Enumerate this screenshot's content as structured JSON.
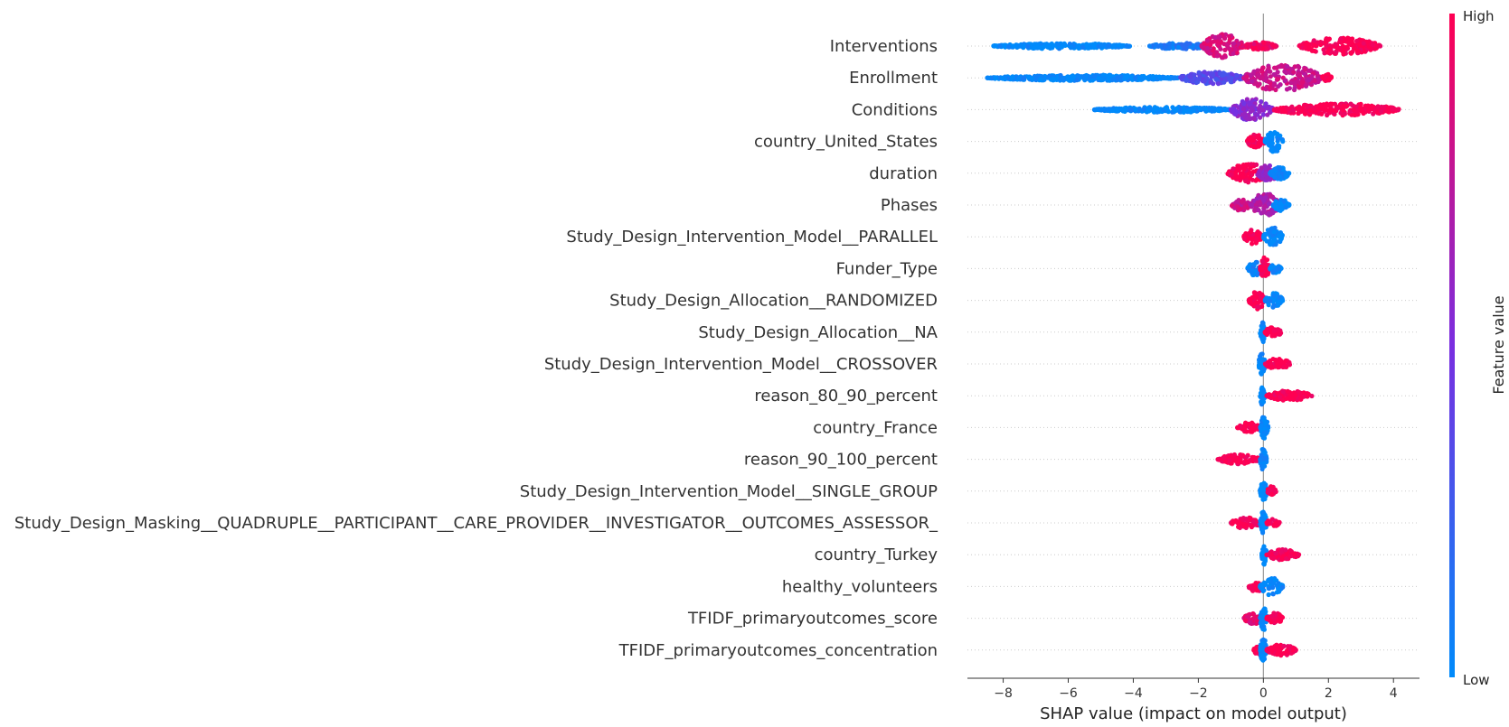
{
  "chart_data": {
    "type": "scatter",
    "subtype": "shap-beeswarm",
    "xlabel": "SHAP value (impact on model output)",
    "xlim": [
      -9.1,
      4.8
    ],
    "xticks": [
      -8,
      -6,
      -4,
      -2,
      0,
      2,
      4
    ],
    "xtick_labels": [
      "−8",
      "−6",
      "−4",
      "−2",
      "0",
      "2",
      "4"
    ],
    "colorbar": {
      "title": "Feature value",
      "high_label": "High",
      "low_label": "Low",
      "high_color": "#ff0052",
      "low_color": "#008bfb"
    },
    "features": [
      {
        "name": "Interventions",
        "segments": [
          {
            "x0": -8.3,
            "x1": -4.1,
            "v": 0.0,
            "w": 0.07
          },
          {
            "x0": -3.5,
            "x1": -1.6,
            "v": 0.1,
            "w": 0.1
          },
          {
            "x0": -1.9,
            "x1": -0.6,
            "v": 0.85,
            "w": 0.85
          },
          {
            "x0": -0.6,
            "x1": 0.4,
            "v": 0.95,
            "w": 0.15
          },
          {
            "x0": 1.1,
            "x1": 3.6,
            "v": 1.0,
            "w": 0.55
          }
        ]
      },
      {
        "name": "Enrollment",
        "segments": [
          {
            "x0": -8.5,
            "x1": -2.6,
            "v": 0.0,
            "w": 0.08
          },
          {
            "x0": -2.6,
            "x1": -0.6,
            "v": 0.35,
            "w": 0.35
          },
          {
            "x0": -0.6,
            "x1": 1.8,
            "v": 0.8,
            "w": 1.0
          },
          {
            "x0": 1.8,
            "x1": 2.1,
            "v": 1.0,
            "w": 0.15
          }
        ]
      },
      {
        "name": "Conditions",
        "segments": [
          {
            "x0": -5.2,
            "x1": -0.9,
            "v": 0.0,
            "w": 0.07
          },
          {
            "x0": -1.0,
            "x1": 0.3,
            "v": 0.55,
            "w": 0.75
          },
          {
            "x0": 0.3,
            "x1": 4.2,
            "v": 1.0,
            "w": 0.35
          }
        ]
      },
      {
        "name": "country_United_States",
        "segments": [
          {
            "x0": -0.5,
            "x1": 0.05,
            "v": 1.0,
            "w": 0.45
          },
          {
            "x0": 0.05,
            "x1": 0.6,
            "v": 0.0,
            "w": 0.75
          }
        ]
      },
      {
        "name": "duration",
        "segments": [
          {
            "x0": -1.1,
            "x1": 0.2,
            "v": 1.0,
            "w": 0.65
          },
          {
            "x0": -0.2,
            "x1": 0.5,
            "v": 0.6,
            "w": 0.5
          },
          {
            "x0": 0.2,
            "x1": 0.8,
            "v": 0.0,
            "w": 0.35
          }
        ]
      },
      {
        "name": "Phases",
        "segments": [
          {
            "x0": -1.0,
            "x1": -0.4,
            "v": 0.8,
            "w": 0.3
          },
          {
            "x0": -0.4,
            "x1": 0.5,
            "v": 0.7,
            "w": 0.8
          },
          {
            "x0": 0.3,
            "x1": 0.8,
            "v": 0.0,
            "w": 0.35
          }
        ]
      },
      {
        "name": "Study_Design_Intervention_Model__PARALLEL",
        "segments": [
          {
            "x0": -0.6,
            "x1": -0.05,
            "v": 1.0,
            "w": 0.45
          },
          {
            "x0": 0.0,
            "x1": 0.6,
            "v": 0.0,
            "w": 0.6
          }
        ]
      },
      {
        "name": "Funder_Type",
        "segments": [
          {
            "x0": -0.5,
            "x1": 0.0,
            "v": 0.05,
            "w": 0.4
          },
          {
            "x0": -0.1,
            "x1": 0.2,
            "v": 1.0,
            "w": 0.8
          },
          {
            "x0": 0.2,
            "x1": 0.55,
            "v": 0.0,
            "w": 0.25
          }
        ]
      },
      {
        "name": "Study_Design_Allocation__RANDOMIZED",
        "segments": [
          {
            "x0": -0.45,
            "x1": 0.05,
            "v": 1.0,
            "w": 0.6
          },
          {
            "x0": 0.05,
            "x1": 0.6,
            "v": 0.0,
            "w": 0.45
          }
        ]
      },
      {
        "name": "Study_Design_Allocation__NA",
        "segments": [
          {
            "x0": -0.1,
            "x1": 0.05,
            "v": 0.0,
            "w": 0.7
          },
          {
            "x0": 0.05,
            "x1": 0.55,
            "v": 1.0,
            "w": 0.3
          }
        ]
      },
      {
        "name": "Study_Design_Intervention_Model__CROSSOVER",
        "segments": [
          {
            "x0": -0.15,
            "x1": 0.05,
            "v": 0.0,
            "w": 0.75
          },
          {
            "x0": 0.05,
            "x1": 0.85,
            "v": 1.0,
            "w": 0.3
          }
        ]
      },
      {
        "name": "reason_80_90_percent",
        "segments": [
          {
            "x0": -0.1,
            "x1": 0.05,
            "v": 0.0,
            "w": 0.7
          },
          {
            "x0": 0.1,
            "x1": 1.5,
            "v": 1.0,
            "w": 0.25
          }
        ]
      },
      {
        "name": "country_France",
        "segments": [
          {
            "x0": -0.8,
            "x1": -0.1,
            "v": 1.0,
            "w": 0.25
          },
          {
            "x0": -0.1,
            "x1": 0.15,
            "v": 0.0,
            "w": 0.75
          }
        ]
      },
      {
        "name": "reason_90_100_percent",
        "segments": [
          {
            "x0": -1.4,
            "x1": -0.1,
            "v": 1.0,
            "w": 0.25
          },
          {
            "x0": -0.1,
            "x1": 0.1,
            "v": 0.0,
            "w": 0.75
          }
        ]
      },
      {
        "name": "Study_Design_Intervention_Model__SINGLE_GROUP",
        "segments": [
          {
            "x0": -0.1,
            "x1": 0.1,
            "v": 0.0,
            "w": 0.75
          },
          {
            "x0": 0.1,
            "x1": 0.4,
            "v": 1.0,
            "w": 0.25
          }
        ]
      },
      {
        "name": "Study_Design_Masking__QUADRUPLE__PARTICIPANT__CARE_PROVIDER__INVESTIGATOR__OUTCOMES_ASSESSOR_",
        "segments": [
          {
            "x0": -1.0,
            "x1": -0.1,
            "v": 1.0,
            "w": 0.3
          },
          {
            "x0": -0.1,
            "x1": 0.1,
            "v": 0.0,
            "w": 0.8
          },
          {
            "x0": 0.1,
            "x1": 0.5,
            "v": 1.0,
            "w": 0.2
          }
        ]
      },
      {
        "name": "country_Turkey",
        "segments": [
          {
            "x0": -0.05,
            "x1": 0.1,
            "v": 0.0,
            "w": 0.75
          },
          {
            "x0": 0.1,
            "x1": 1.1,
            "v": 1.0,
            "w": 0.3
          }
        ]
      },
      {
        "name": "healthy_volunteers",
        "segments": [
          {
            "x0": -0.45,
            "x1": 0.0,
            "v": 1.0,
            "w": 0.3
          },
          {
            "x0": -0.1,
            "x1": 0.6,
            "v": 0.0,
            "w": 0.55
          }
        ]
      },
      {
        "name": "TFIDF_primaryoutcomes_score",
        "segments": [
          {
            "x0": -0.6,
            "x1": 0.0,
            "v": 0.9,
            "w": 0.3
          },
          {
            "x0": -0.1,
            "x1": 0.1,
            "v": 0.0,
            "w": 0.85
          },
          {
            "x0": 0.1,
            "x1": 0.6,
            "v": 1.0,
            "w": 0.3
          }
        ]
      },
      {
        "name": "TFIDF_primaryoutcomes_concentration",
        "segments": [
          {
            "x0": -0.3,
            "x1": 0.0,
            "v": 1.0,
            "w": 0.3
          },
          {
            "x0": -0.1,
            "x1": 0.1,
            "v": 0.0,
            "w": 0.85
          },
          {
            "x0": 0.1,
            "x1": 1.0,
            "v": 1.0,
            "w": 0.3
          }
        ]
      }
    ]
  }
}
